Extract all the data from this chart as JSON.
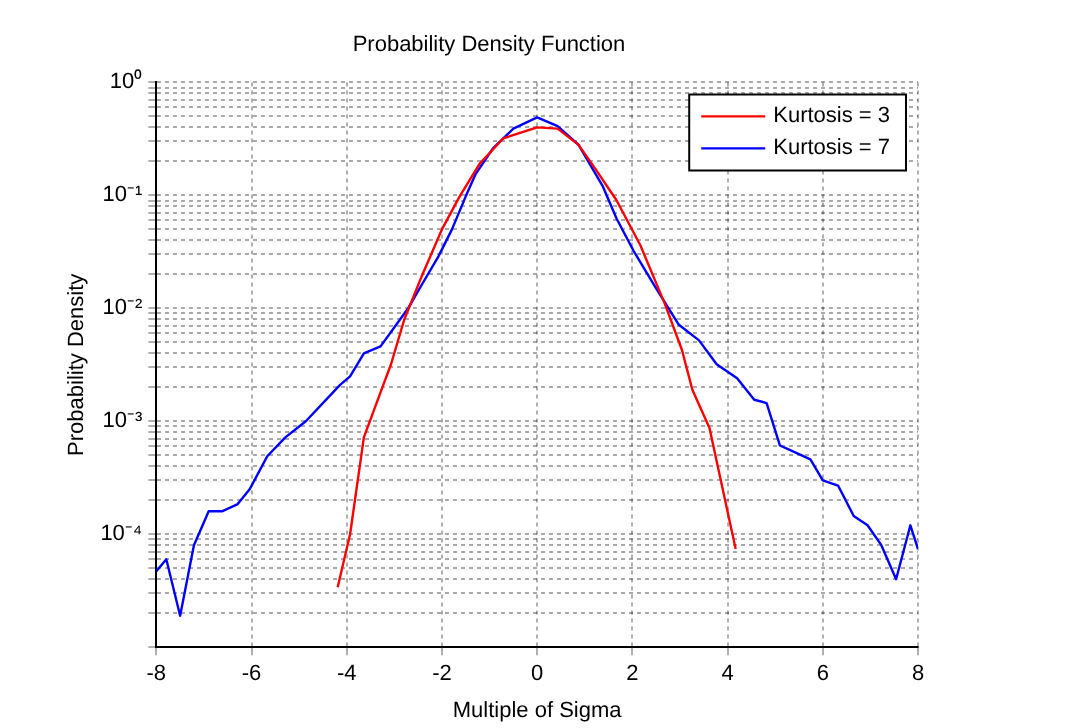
{
  "chart_data": {
    "type": "line",
    "title": "Probability Density Function",
    "xlabel": "Multiple of Sigma",
    "ylabel": "Probability Density",
    "log": "y",
    "grid": true,
    "legend": "top right",
    "marker": "none",
    "line_style": "solid",
    "xlim": [
      -8,
      8
    ],
    "xticks": [
      -8,
      -6,
      -4,
      -2,
      0,
      2,
      4,
      6,
      8
    ],
    "ylim": [
      1e-05,
      1
    ],
    "yticks": [
      {
        "value": 1e-05,
        "label": null
      },
      {
        "value": 2e-05,
        "label": null
      },
      {
        "value": 3e-05,
        "label": null
      },
      {
        "value": 4e-05,
        "label": null
      },
      {
        "value": 5e-05,
        "label": null
      },
      {
        "value": 6e-05,
        "label": null
      },
      {
        "value": 7e-05,
        "label": null
      },
      {
        "value": 8e-05,
        "label": null
      },
      {
        "value": 9e-05,
        "label": null
      },
      {
        "value": 0.0001,
        "label": "10⁻⁴"
      },
      {
        "value": 0.0002,
        "label": null
      },
      {
        "value": 0.0003,
        "label": null
      },
      {
        "value": 0.0004,
        "label": null
      },
      {
        "value": 0.0005,
        "label": null
      },
      {
        "value": 0.0006,
        "label": null
      },
      {
        "value": 0.0007,
        "label": null
      },
      {
        "value": 0.0008,
        "label": null
      },
      {
        "value": 0.0009,
        "label": null
      },
      {
        "value": 0.001,
        "label": "10⁻³"
      },
      {
        "value": 0.002,
        "label": null
      },
      {
        "value": 0.003,
        "label": null
      },
      {
        "value": 0.004,
        "label": null
      },
      {
        "value": 0.005,
        "label": null
      },
      {
        "value": 0.006,
        "label": null
      },
      {
        "value": 0.007,
        "label": null
      },
      {
        "value": 0.008,
        "label": null
      },
      {
        "value": 0.009,
        "label": null
      },
      {
        "value": 0.01,
        "label": "10⁻²"
      },
      {
        "value": 0.02,
        "label": null
      },
      {
        "value": 0.03,
        "label": null
      },
      {
        "value": 0.04,
        "label": null
      },
      {
        "value": 0.05,
        "label": null
      },
      {
        "value": 0.06,
        "label": null
      },
      {
        "value": 0.07,
        "label": null
      },
      {
        "value": 0.08,
        "label": null
      },
      {
        "value": 0.09,
        "label": null
      },
      {
        "value": 0.1,
        "label": "10⁻¹"
      },
      {
        "value": 0.2,
        "label": null
      },
      {
        "value": 0.3,
        "label": null
      },
      {
        "value": 0.4,
        "label": null
      },
      {
        "value": 0.5,
        "label": null
      },
      {
        "value": 0.6,
        "label": null
      },
      {
        "value": 0.7,
        "label": null
      },
      {
        "value": 0.8,
        "label": null
      },
      {
        "value": 0.9,
        "label": null
      },
      {
        "value": 1,
        "label": "10⁰"
      }
    ],
    "series": [
      {
        "name": "Kurtosis = 3",
        "color": "#ff0000",
        "x": [
          -4.19,
          -3.93,
          -3.64,
          -3.29,
          -3.07,
          -2.79,
          -2.43,
          -2,
          -1.64,
          -1.21,
          -0.71,
          0,
          0.43,
          0.87,
          1.23,
          1.67,
          2.17,
          2.68,
          3.04,
          3.26,
          3.62,
          4.17
        ],
        "values": [
          3.4e-05,
          0.0001,
          0.00072,
          0.0018,
          0.0032,
          0.008,
          0.019,
          0.05,
          0.096,
          0.19,
          0.32,
          0.4,
          0.39,
          0.28,
          0.17,
          0.09,
          0.036,
          0.011,
          0.0043,
          0.0019,
          0.00087,
          7.4e-05
        ]
      },
      {
        "name": "Kurtosis = 7",
        "color": "#0000ff",
        "x": [
          -8,
          -7.79,
          -7.5,
          -7.21,
          -6.9,
          -6.61,
          -6.29,
          -6.04,
          -5.67,
          -5.29,
          -4.86,
          -4.14,
          -3.93,
          -3.64,
          -3.29,
          -2.71,
          -2.43,
          -2.07,
          -1.79,
          -1.5,
          -1.29,
          -0.93,
          -0.5,
          0,
          0.43,
          0.87,
          1.38,
          1.67,
          2.03,
          2.46,
          2.97,
          3.4,
          3.77,
          4.2,
          4.56,
          4.82,
          5.1,
          5.42,
          5.74,
          6,
          6.32,
          6.65,
          6.94,
          7.23,
          7.54,
          7.84,
          8
        ],
        "values": [
          4.7e-05,
          6e-05,
          1.9e-05,
          8e-05,
          0.00016,
          0.00016,
          0.000185,
          0.00025,
          0.00049,
          0.00072,
          0.001,
          0.0021,
          0.0025,
          0.004,
          0.0046,
          0.01,
          0.016,
          0.029,
          0.05,
          0.098,
          0.155,
          0.26,
          0.39,
          0.49,
          0.41,
          0.28,
          0.12,
          0.062,
          0.032,
          0.016,
          0.0072,
          0.0052,
          0.0032,
          0.0024,
          0.00155,
          0.00145,
          0.00061,
          0.00053,
          0.00046,
          0.0003,
          0.00027,
          0.000145,
          0.00012,
          8e-05,
          4e-05,
          0.00012,
          7.4e-05
        ]
      }
    ]
  }
}
